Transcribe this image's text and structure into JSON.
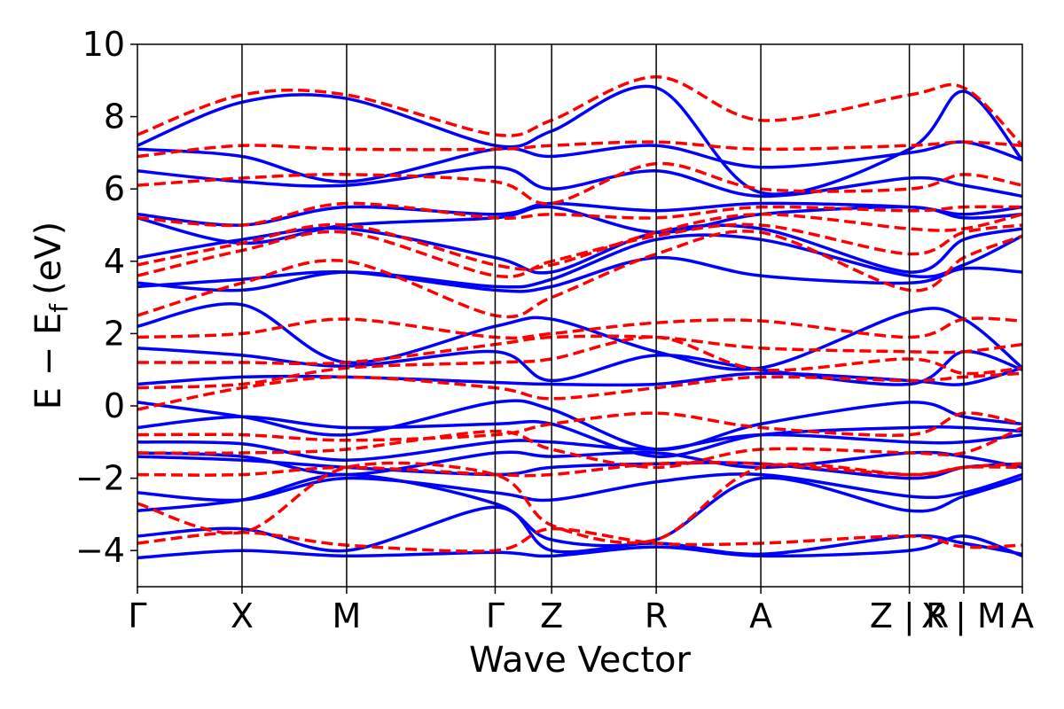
{
  "chart_data": {
    "type": "line",
    "title": "",
    "xlabel": "Wave Vector",
    "ylabel_main": "E − E",
    "ylabel_sub": "f",
    "ylabel_unit": "(eV)",
    "ylim": [
      -5,
      10
    ],
    "yticks": [
      -4,
      -2,
      0,
      2,
      4,
      6,
      8,
      10
    ],
    "ytick_labels": [
      "−4",
      "−2",
      "0",
      "2",
      "4",
      "6",
      "8",
      "10"
    ],
    "kpath": [
      {
        "label": "Γ",
        "k": 0.0
      },
      {
        "label": "X",
        "k": 1.0
      },
      {
        "label": "M",
        "k": 2.0
      },
      {
        "label": "Γ",
        "k": 3.42
      },
      {
        "label": "Z",
        "k": 3.96
      },
      {
        "label": "R",
        "k": 4.96
      },
      {
        "label": "A",
        "k": 5.96
      },
      {
        "label": "Z | R",
        "k": 7.38
      },
      {
        "label": "X | M",
        "k": 7.9
      },
      {
        "label": "A",
        "k": 8.46
      }
    ],
    "xlim": [
      0,
      8.46
    ],
    "grid": false,
    "legend": "none",
    "colors": {
      "series_a": "#0000ff",
      "series_b": "#ff0000"
    },
    "series": [
      {
        "style": "solid",
        "color": "#0000ff",
        "bands": [
          [
            -4.2,
            -4.0,
            -4.15,
            -4.05,
            -4.15,
            -3.9,
            -4.15,
            -4.0,
            -3.6,
            -4.15
          ],
          [
            -3.6,
            -3.4,
            -4.0,
            -2.8,
            -4.0,
            -3.8,
            -4.1,
            -3.6,
            -3.8,
            -4.1
          ],
          [
            -2.9,
            -2.6,
            -1.9,
            -2.7,
            -3.7,
            -3.7,
            -2.0,
            -2.9,
            -2.5,
            -2.0
          ],
          [
            -2.4,
            -2.6,
            -2.0,
            -2.4,
            -2.6,
            -2.1,
            -1.9,
            -2.5,
            -2.4,
            -1.9
          ],
          [
            -1.4,
            -1.5,
            -1.7,
            -1.9,
            -1.7,
            -1.6,
            -1.6,
            -2.0,
            -1.7,
            -1.6
          ],
          [
            -1.3,
            -1.4,
            -1.9,
            -1.3,
            -1.4,
            -1.3,
            -1.7,
            -1.3,
            -1.4,
            -1.7
          ],
          [
            -1.0,
            -1.05,
            -1.5,
            -1.0,
            -1.0,
            -1.2,
            -0.8,
            -1.0,
            -1.0,
            -0.8
          ],
          [
            -0.6,
            -0.3,
            -0.6,
            -0.5,
            -0.5,
            -1.4,
            -0.8,
            -0.6,
            -0.6,
            -0.7
          ],
          [
            0.1,
            -0.3,
            -0.8,
            0.1,
            -0.1,
            -1.2,
            -0.5,
            0.1,
            -0.3,
            -0.5
          ],
          [
            0.6,
            0.8,
            0.8,
            0.65,
            0.6,
            0.6,
            0.9,
            0.7,
            0.6,
            1.05
          ],
          [
            1.6,
            1.4,
            1.1,
            1.5,
            0.7,
            1.4,
            1.0,
            0.6,
            1.5,
            1.0
          ],
          [
            2.2,
            2.8,
            1.2,
            2.2,
            2.4,
            1.5,
            1.05,
            2.6,
            2.4,
            1.05
          ],
          [
            3.3,
            3.5,
            3.7,
            3.2,
            3.3,
            4.1,
            3.6,
            3.4,
            3.8,
            3.7
          ],
          [
            3.4,
            3.2,
            3.7,
            3.3,
            3.5,
            4.6,
            4.6,
            3.6,
            3.9,
            4.7
          ],
          [
            4.1,
            4.6,
            4.9,
            4.1,
            3.7,
            4.8,
            4.9,
            3.7,
            4.6,
            4.9
          ],
          [
            5.2,
            4.5,
            5.0,
            5.2,
            5.5,
            4.8,
            5.3,
            5.5,
            5.2,
            5.3
          ],
          [
            5.3,
            5.0,
            5.5,
            5.3,
            5.6,
            5.4,
            5.6,
            5.5,
            5.3,
            5.5
          ],
          [
            6.5,
            6.2,
            6.1,
            6.6,
            6.0,
            6.5,
            5.8,
            6.3,
            6.1,
            5.8
          ],
          [
            7.1,
            6.9,
            6.2,
            7.1,
            6.9,
            7.2,
            6.6,
            7.0,
            7.3,
            6.8
          ],
          [
            7.2,
            8.4,
            8.5,
            7.2,
            7.6,
            8.8,
            5.9,
            7.1,
            8.7,
            6.8
          ]
        ]
      },
      {
        "style": "dashed",
        "color": "#ff0000",
        "bands": [
          [
            -3.8,
            -3.5,
            -3.85,
            -4.0,
            -3.4,
            -3.8,
            -3.8,
            -3.6,
            -3.9,
            -3.85
          ],
          [
            -2.7,
            -3.5,
            -1.7,
            -1.9,
            -3.3,
            -3.7,
            -1.7,
            -1.9,
            -1.7,
            -1.7
          ],
          [
            -1.9,
            -1.9,
            -1.7,
            -1.9,
            -1.9,
            -1.6,
            -1.6,
            -1.9,
            -1.7,
            -1.6
          ],
          [
            -1.3,
            -1.3,
            -1.2,
            -0.7,
            -1.2,
            -1.7,
            -1.2,
            -1.3,
            -1.3,
            -0.6
          ],
          [
            -0.8,
            -0.8,
            -0.95,
            -0.8,
            -0.5,
            -0.2,
            -0.6,
            -0.8,
            -0.2,
            -0.5
          ],
          [
            -0.1,
            0.5,
            0.8,
            0.5,
            0.2,
            0.5,
            0.8,
            0.7,
            0.8,
            0.9
          ],
          [
            0.5,
            0.6,
            1.05,
            1.2,
            1.3,
            1.9,
            1.0,
            1.3,
            0.9,
            1.05
          ],
          [
            1.2,
            1.2,
            1.2,
            1.7,
            1.9,
            1.9,
            1.6,
            1.5,
            1.5,
            1.7
          ],
          [
            1.9,
            2.0,
            2.4,
            1.9,
            2.0,
            2.3,
            2.35,
            1.9,
            2.4,
            2.35
          ],
          [
            2.5,
            3.4,
            4.0,
            2.5,
            3.0,
            4.2,
            4.8,
            3.2,
            4.1,
            4.7
          ],
          [
            3.6,
            4.3,
            4.8,
            3.6,
            4.0,
            4.7,
            5.0,
            4.2,
            4.8,
            5.0
          ],
          [
            3.9,
            4.5,
            5.0,
            3.9,
            3.9,
            4.8,
            5.3,
            4.9,
            4.9,
            5.3
          ],
          [
            5.2,
            5.0,
            5.6,
            5.2,
            5.3,
            5.2,
            5.5,
            5.4,
            5.5,
            5.5
          ],
          [
            6.1,
            6.3,
            6.4,
            6.2,
            5.6,
            6.7,
            6.0,
            6.0,
            6.4,
            6.1
          ],
          [
            6.9,
            7.2,
            7.1,
            7.1,
            7.2,
            7.3,
            7.1,
            7.2,
            7.3,
            7.2
          ],
          [
            7.5,
            8.6,
            8.6,
            7.5,
            7.9,
            9.1,
            7.9,
            8.6,
            8.8,
            7.2
          ]
        ]
      }
    ]
  }
}
